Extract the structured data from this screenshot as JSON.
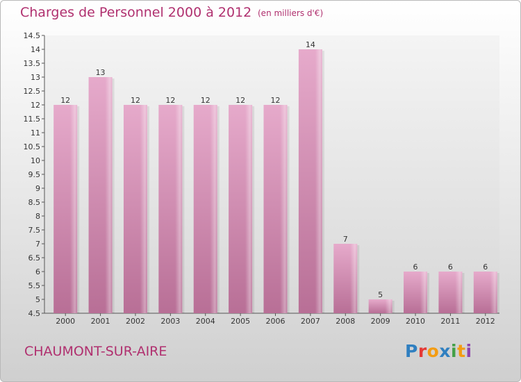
{
  "header": {
    "title": "Charges de Personnel 2000 à 2012",
    "subtitle": "(en milliers d'€)"
  },
  "footer": {
    "commune": "CHAUMONT-SUR-AIRE",
    "logo_text": "Proxiti",
    "logo_colors": [
      "#2f7fc0",
      "#e53935",
      "#f39c12",
      "#2f7fc0",
      "#43a047",
      "#f39c12",
      "#8e44ad"
    ]
  },
  "chart_data": {
    "type": "bar",
    "categories": [
      "2000",
      "2001",
      "2002",
      "2003",
      "2004",
      "2005",
      "2006",
      "2007",
      "2008",
      "2009",
      "2010",
      "2011",
      "2012"
    ],
    "values": [
      12,
      13,
      12,
      12,
      12,
      12,
      12,
      14,
      7,
      5,
      6,
      6,
      6
    ],
    "data_labels": [
      "12",
      "13",
      "12",
      "12",
      "12",
      "12",
      "12",
      "14",
      "7",
      "5",
      "6",
      "6",
      "6"
    ],
    "yticks": [
      "4.5",
      "5",
      "5.5",
      "6",
      "6.5",
      "7",
      "7.5",
      "8",
      "8.5",
      "9",
      "9.5",
      "10",
      "10.5",
      "11",
      "11.5",
      "12",
      "12.5",
      "13",
      "13.5",
      "14",
      "14.5"
    ],
    "ylim": [
      4.5,
      14.5
    ],
    "grid": false,
    "bar_color": "#d98fb7"
  }
}
